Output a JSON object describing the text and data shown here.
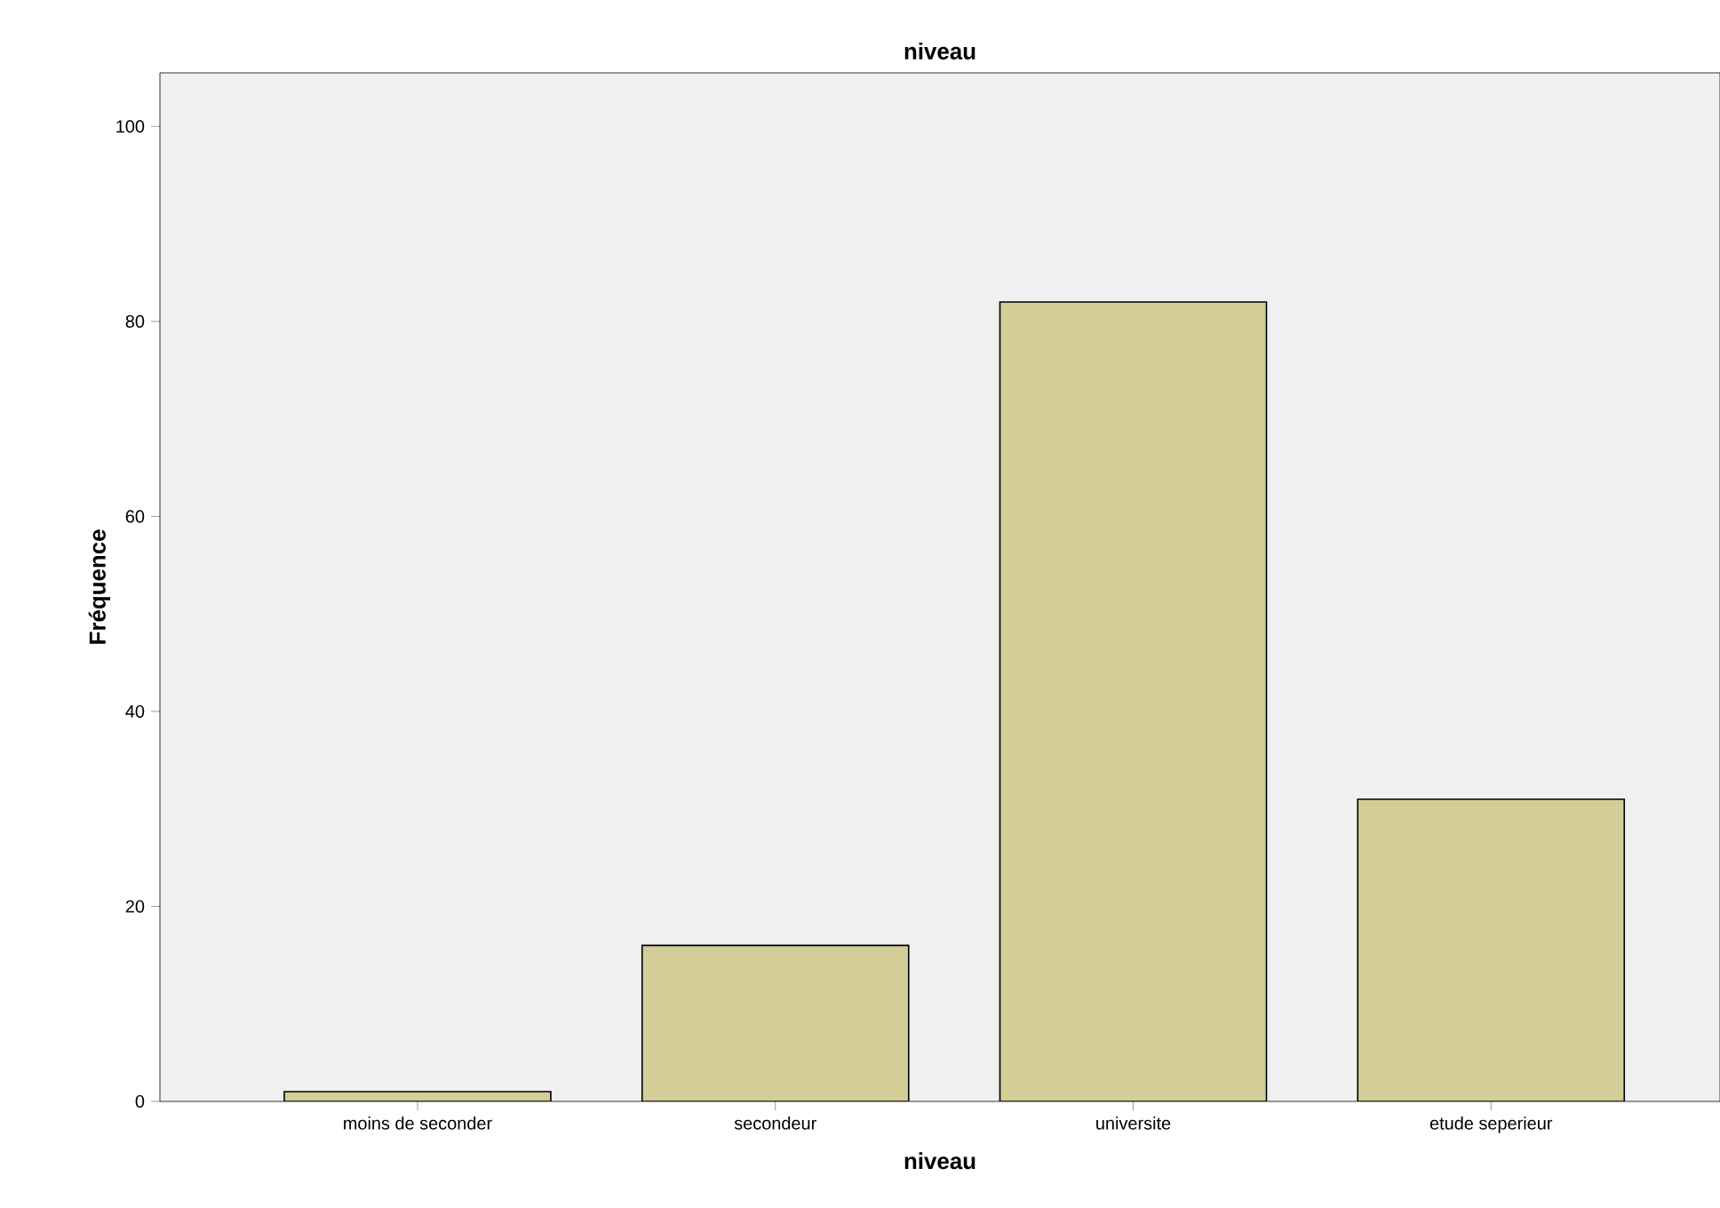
{
  "chart_data": {
    "type": "bar",
    "title": "niveau",
    "xlabel": "niveau",
    "ylabel": "Fréquence",
    "categories": [
      "moins de seconder",
      "secondeur",
      "universite",
      "etude seperieur"
    ],
    "values": [
      1,
      16,
      82,
      31
    ],
    "color": "#d3ce97",
    "ylim": [
      0,
      105.5
    ],
    "yticks": [
      0,
      20,
      40,
      60,
      80,
      100
    ],
    "grid": false
  }
}
